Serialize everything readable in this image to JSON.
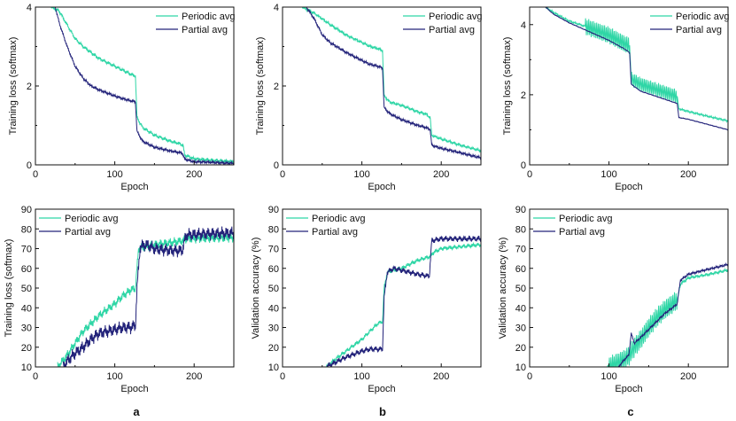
{
  "colors": {
    "periodic": "#2fd6a6",
    "partial": "#23237a",
    "axis": "#111111"
  },
  "panel_letters": [
    "a",
    "b",
    "c"
  ],
  "chart_data": [
    {
      "type": "line",
      "column": "a",
      "row": "top",
      "title": "",
      "xlabel": "Epoch",
      "ylabel": "Training loss (softmax)",
      "xlim": [
        0,
        250
      ],
      "ylim": [
        0,
        4
      ],
      "xticks": [
        "0",
        "100",
        "200"
      ],
      "yticks": [
        "0",
        "2",
        "4"
      ],
      "legend": [
        "Periodic avg",
        "Partial avg"
      ],
      "legend_position": "top-right",
      "series": [
        {
          "name": "Periodic avg",
          "noise": 0.05,
          "freq": 5,
          "points": [
            [
              20,
              4.0
            ],
            [
              30,
              3.9
            ],
            [
              40,
              3.55
            ],
            [
              50,
              3.2
            ],
            [
              60,
              3.0
            ],
            [
              70,
              2.85
            ],
            [
              80,
              2.7
            ],
            [
              100,
              2.5
            ],
            [
              110,
              2.4
            ],
            [
              120,
              2.3
            ],
            [
              126,
              2.25
            ],
            [
              128,
              1.2
            ],
            [
              135,
              0.95
            ],
            [
              150,
              0.75
            ],
            [
              170,
              0.6
            ],
            [
              180,
              0.55
            ],
            [
              186,
              0.5
            ],
            [
              188,
              0.25
            ],
            [
              200,
              0.15
            ],
            [
              250,
              0.08
            ]
          ]
        },
        {
          "name": "Partial avg",
          "noise": 0.035,
          "freq": 5,
          "points": [
            [
              25,
              4.0
            ],
            [
              30,
              3.6
            ],
            [
              40,
              3.0
            ],
            [
              50,
              2.5
            ],
            [
              60,
              2.2
            ],
            [
              70,
              2.0
            ],
            [
              80,
              1.9
            ],
            [
              100,
              1.75
            ],
            [
              110,
              1.68
            ],
            [
              120,
              1.62
            ],
            [
              126,
              1.6
            ],
            [
              128,
              0.85
            ],
            [
              135,
              0.6
            ],
            [
              150,
              0.45
            ],
            [
              170,
              0.35
            ],
            [
              185,
              0.3
            ],
            [
              188,
              0.15
            ],
            [
              200,
              0.08
            ],
            [
              250,
              0.04
            ]
          ]
        }
      ]
    },
    {
      "type": "line",
      "column": "b",
      "row": "top",
      "title": "",
      "xlabel": "Epoch",
      "ylabel": "Training loss (softmax)",
      "xlim": [
        0,
        250
      ],
      "ylim": [
        0,
        4
      ],
      "xticks": [
        "0",
        "100",
        "200"
      ],
      "yticks": [
        "0",
        "2",
        "4"
      ],
      "legend": [
        "Periodic avg",
        "Partial avg"
      ],
      "legend_position": "top-right",
      "series": [
        {
          "name": "Periodic avg",
          "noise": 0.04,
          "freq": 5,
          "points": [
            [
              25,
              4.0
            ],
            [
              40,
              3.85
            ],
            [
              60,
              3.55
            ],
            [
              80,
              3.3
            ],
            [
              100,
              3.1
            ],
            [
              110,
              3.0
            ],
            [
              120,
              2.95
            ],
            [
              126,
              2.9
            ],
            [
              128,
              1.75
            ],
            [
              135,
              1.6
            ],
            [
              150,
              1.5
            ],
            [
              170,
              1.35
            ],
            [
              180,
              1.3
            ],
            [
              186,
              1.2
            ],
            [
              188,
              0.75
            ],
            [
              200,
              0.65
            ],
            [
              250,
              0.35
            ]
          ]
        },
        {
          "name": "Partial avg",
          "noise": 0.035,
          "freq": 5,
          "points": [
            [
              30,
              4.0
            ],
            [
              40,
              3.7
            ],
            [
              50,
              3.3
            ],
            [
              60,
              3.1
            ],
            [
              80,
              2.85
            ],
            [
              100,
              2.65
            ],
            [
              110,
              2.55
            ],
            [
              120,
              2.5
            ],
            [
              126,
              2.45
            ],
            [
              128,
              1.45
            ],
            [
              135,
              1.3
            ],
            [
              150,
              1.15
            ],
            [
              170,
              1.0
            ],
            [
              180,
              0.95
            ],
            [
              186,
              0.9
            ],
            [
              188,
              0.5
            ],
            [
              200,
              0.42
            ],
            [
              250,
              0.18
            ]
          ]
        }
      ]
    },
    {
      "type": "line",
      "column": "c",
      "row": "top",
      "title": "",
      "xlabel": "Epoch",
      "ylabel": "Training loss (softmax)",
      "xlim": [
        0,
        250
      ],
      "ylim": [
        0,
        4.5
      ],
      "xticks": [
        "0",
        "100",
        "200"
      ],
      "yticks": [
        "0",
        "2",
        "4"
      ],
      "legend": [
        "Periodic avg",
        "Partial avg"
      ],
      "legend_position": "top-right",
      "series": [
        {
          "name": "Periodic avg",
          "noise": 0.03,
          "freq": 5,
          "osc": [
            [
              70,
              126,
              0.22
            ],
            [
              128,
              186,
              0.18
            ]
          ],
          "points": [
            [
              20,
              4.5
            ],
            [
              30,
              4.35
            ],
            [
              50,
              4.1
            ],
            [
              70,
              3.95
            ],
            [
              100,
              3.7
            ],
            [
              120,
              3.45
            ],
            [
              126,
              3.4
            ],
            [
              128,
              2.45
            ],
            [
              140,
              2.3
            ],
            [
              160,
              2.15
            ],
            [
              186,
              1.95
            ],
            [
              188,
              1.6
            ],
            [
              200,
              1.52
            ],
            [
              250,
              1.25
            ]
          ]
        },
        {
          "name": "Partial avg",
          "noise": 0.01,
          "freq": 5,
          "points": [
            [
              20,
              4.5
            ],
            [
              30,
              4.3
            ],
            [
              50,
              4.05
            ],
            [
              70,
              3.85
            ],
            [
              100,
              3.55
            ],
            [
              120,
              3.3
            ],
            [
              126,
              3.2
            ],
            [
              128,
              2.3
            ],
            [
              140,
              2.1
            ],
            [
              160,
              1.95
            ],
            [
              186,
              1.75
            ],
            [
              188,
              1.35
            ],
            [
              200,
              1.3
            ],
            [
              250,
              1.0
            ]
          ]
        }
      ]
    },
    {
      "type": "line",
      "column": "a",
      "row": "bottom",
      "title": "",
      "xlabel": "Epoch",
      "ylabel": "Training loss (softmax)",
      "xlim": [
        0,
        250
      ],
      "ylim": [
        10,
        90
      ],
      "xticks": [
        "0",
        "100",
        "200"
      ],
      "yticks": [
        "10",
        "20",
        "30",
        "40",
        "50",
        "60",
        "70",
        "80",
        "90"
      ],
      "legend": [
        "Periodic avg",
        "Partial avg"
      ],
      "legend_position": "top-left",
      "series": [
        {
          "name": "Periodic avg",
          "noise": 2.5,
          "freq": 5,
          "points": [
            [
              28,
              10
            ],
            [
              40,
              16
            ],
            [
              50,
              22
            ],
            [
              60,
              28
            ],
            [
              70,
              32
            ],
            [
              80,
              36
            ],
            [
              100,
              42
            ],
            [
              110,
              46
            ],
            [
              120,
              49
            ],
            [
              126,
              50
            ],
            [
              130,
              70
            ],
            [
              140,
              71
            ],
            [
              150,
              72
            ],
            [
              170,
              73
            ],
            [
              186,
              74
            ],
            [
              190,
              75
            ],
            [
              250,
              75.5
            ]
          ]
        },
        {
          "name": "Partial avg",
          "noise": 3.5,
          "freq": 5,
          "points": [
            [
              35,
              10
            ],
            [
              40,
              13
            ],
            [
              50,
              17
            ],
            [
              60,
              20
            ],
            [
              70,
              24
            ],
            [
              80,
              27
            ],
            [
              100,
              29
            ],
            [
              110,
              30
            ],
            [
              120,
              30
            ],
            [
              126,
              31
            ],
            [
              128,
              50
            ],
            [
              132,
              71
            ],
            [
              140,
              72
            ],
            [
              150,
              70
            ],
            [
              170,
              69
            ],
            [
              185,
              69
            ],
            [
              190,
              77
            ],
            [
              250,
              78
            ]
          ]
        }
      ]
    },
    {
      "type": "line",
      "column": "b",
      "row": "bottom",
      "title": "",
      "xlabel": "Epoch",
      "ylabel": "Validation accuracy (%)",
      "xlim": [
        0,
        250
      ],
      "ylim": [
        10,
        90
      ],
      "xticks": [
        "0",
        "100",
        "200"
      ],
      "yticks": [
        "10",
        "20",
        "30",
        "40",
        "50",
        "60",
        "70",
        "80",
        "90"
      ],
      "legend": [
        "Periodic avg",
        "Partial avg"
      ],
      "legend_position": "top-left",
      "series": [
        {
          "name": "Periodic avg",
          "noise": 1.2,
          "freq": 5,
          "points": [
            [
              55,
              10
            ],
            [
              70,
              15
            ],
            [
              80,
              18
            ],
            [
              100,
              24
            ],
            [
              110,
              28
            ],
            [
              120,
              32
            ],
            [
              126,
              33
            ],
            [
              128,
              50
            ],
            [
              132,
              58
            ],
            [
              140,
              59
            ],
            [
              150,
              60
            ],
            [
              170,
              64
            ],
            [
              186,
              66
            ],
            [
              190,
              68
            ],
            [
              200,
              70
            ],
            [
              250,
              72
            ]
          ]
        },
        {
          "name": "Partial avg",
          "noise": 1.6,
          "freq": 5,
          "points": [
            [
              55,
              10
            ],
            [
              70,
              13
            ],
            [
              80,
              15
            ],
            [
              100,
              18
            ],
            [
              110,
              19
            ],
            [
              120,
              19
            ],
            [
              126,
              19
            ],
            [
              128,
              45
            ],
            [
              132,
              58
            ],
            [
              140,
              60
            ],
            [
              150,
              59
            ],
            [
              170,
              57
            ],
            [
              185,
              56
            ],
            [
              188,
              74
            ],
            [
              200,
              75
            ],
            [
              250,
              75
            ]
          ]
        }
      ]
    },
    {
      "type": "line",
      "column": "c",
      "row": "bottom",
      "title": "",
      "xlabel": "Epoch",
      "ylabel": "Validation accuracy (%)",
      "xlim": [
        0,
        250
      ],
      "ylim": [
        10,
        90
      ],
      "xticks": [
        "0",
        "100",
        "200"
      ],
      "yticks": [
        "10",
        "20",
        "30",
        "40",
        "50",
        "60",
        "70",
        "80",
        "90"
      ],
      "legend": [
        "Periodic avg",
        "Partial avg"
      ],
      "legend_position": "top-left",
      "series": [
        {
          "name": "Periodic avg",
          "noise": 0.8,
          "freq": 5,
          "osc": [
            [
              100,
              186,
              4.5
            ]
          ],
          "points": [
            [
              98,
              10
            ],
            [
              110,
              12
            ],
            [
              120,
              14
            ],
            [
              126,
              16
            ],
            [
              130,
              19
            ],
            [
              140,
              24
            ],
            [
              150,
              30
            ],
            [
              160,
              35
            ],
            [
              170,
              39
            ],
            [
              180,
              42
            ],
            [
              186,
              44
            ],
            [
              190,
              52
            ],
            [
              200,
              55
            ],
            [
              250,
              59
            ]
          ]
        },
        {
          "name": "Partial avg",
          "noise": 0.6,
          "freq": 5,
          "points": [
            [
              112,
              10
            ],
            [
              120,
              14
            ],
            [
              125,
              16
            ],
            [
              128,
              27
            ],
            [
              132,
              22
            ],
            [
              140,
              25
            ],
            [
              150,
              29
            ],
            [
              160,
              33
            ],
            [
              170,
              37
            ],
            [
              180,
              40
            ],
            [
              186,
              42
            ],
            [
              190,
              54
            ],
            [
              200,
              57
            ],
            [
              250,
              62
            ]
          ]
        }
      ]
    }
  ]
}
